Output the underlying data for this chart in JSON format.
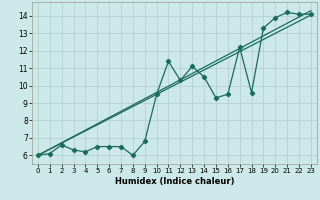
{
  "bg_color": "#cce8e8",
  "grid_color": "#b8d4d4",
  "line_color": "#1a6b5a",
  "xlabel": "Humidex (Indice chaleur)",
  "xlim": [
    -0.5,
    23.5
  ],
  "ylim": [
    5.5,
    14.8
  ],
  "xticks": [
    0,
    1,
    2,
    3,
    4,
    5,
    6,
    7,
    8,
    9,
    10,
    11,
    12,
    13,
    14,
    15,
    16,
    17,
    18,
    19,
    20,
    21,
    22,
    23
  ],
  "yticks": [
    6,
    7,
    8,
    9,
    10,
    11,
    12,
    13,
    14
  ],
  "scatter_x": [
    0,
    1,
    2,
    3,
    4,
    5,
    6,
    7,
    8,
    9,
    10,
    11,
    12,
    13,
    14,
    15,
    16,
    17,
    18,
    19,
    20,
    21,
    22,
    23
  ],
  "scatter_y": [
    6.0,
    6.1,
    6.6,
    6.3,
    6.2,
    6.5,
    6.5,
    6.5,
    6.0,
    6.8,
    9.5,
    11.4,
    10.3,
    11.1,
    10.5,
    9.3,
    9.5,
    12.2,
    9.6,
    13.3,
    13.9,
    14.2,
    14.1,
    14.1
  ],
  "line1_x": [
    0,
    23
  ],
  "line1_y": [
    6.0,
    14.3
  ],
  "line2_x": [
    0,
    23
  ],
  "line2_y": [
    6.0,
    14.05
  ],
  "xlabel_fontsize": 6.0,
  "tick_fontsize_x": 5.0,
  "tick_fontsize_y": 5.5
}
